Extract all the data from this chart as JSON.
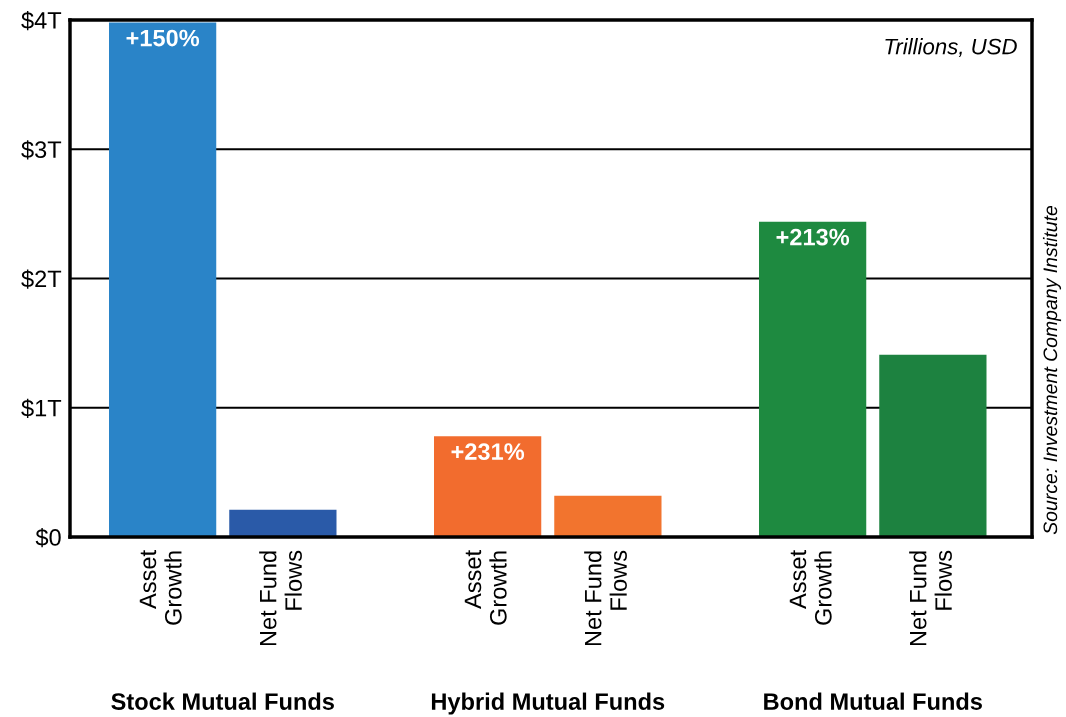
{
  "chart_data": {
    "type": "bar",
    "categories": [
      "Stock Mutual Funds",
      "Hybrid Mutual Funds",
      "Bond Mutual Funds"
    ],
    "series": [
      {
        "name": "Asset Growth",
        "values": [
          3.98,
          0.78,
          2.44
        ],
        "colors": [
          "#2a84c8",
          "#f26c2e",
          "#1e8a40"
        ]
      },
      {
        "name": "Net Fund Flows",
        "values": [
          0.21,
          0.32,
          1.41
        ],
        "colors": [
          "#2a5aa8",
          "#f2742e",
          "#1d8240"
        ]
      }
    ],
    "ylim": [
      0,
      4
    ],
    "yticks": [
      {
        "value": 0,
        "label": "$0"
      },
      {
        "value": 1,
        "label": "$1T"
      },
      {
        "value": 2,
        "label": "$2T"
      },
      {
        "value": 3,
        "label": "$3T"
      },
      {
        "value": 4,
        "label": "$4T"
      }
    ],
    "grid": "y",
    "legend": false,
    "annotations": [
      "Trillions, USD",
      "Source: Investment Company Institute",
      "+150%",
      "+231%",
      "+213%"
    ]
  }
}
